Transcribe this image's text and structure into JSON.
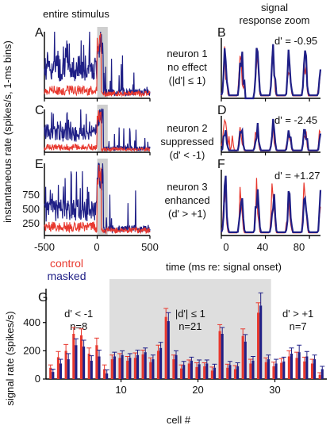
{
  "colors": {
    "control": "#e8382e",
    "masked": "#1f1f86",
    "shade": "#cfcfcf",
    "bshade": "#dedede",
    "axis": "#000000"
  },
  "header": {
    "left": "entire stimulus",
    "right_line1": "signal",
    "right_line2": "response zoom"
  },
  "ylabel_top": "instantaneous rate (spikes/s, 1-ms bins)",
  "xlabel_top": "time (ms re: signal onset)",
  "legend": {
    "control": "control",
    "masked": "masked"
  },
  "rows": [
    {
      "left_letter": "A",
      "right_letter": "B",
      "desc": [
        "neuron 1",
        "no effect",
        "(|d'| ≤ 1)"
      ],
      "dprime": "d' = -0.95"
    },
    {
      "left_letter": "C",
      "right_letter": "D",
      "desc": [
        "neuron 2",
        "suppressed",
        "(d' < -1)"
      ],
      "dprime": "d' = -2.45"
    },
    {
      "left_letter": "E",
      "right_letter": "F",
      "desc": [
        "neuron 3",
        "enhanced",
        "(d' > +1)"
      ],
      "dprime": "d' = +1.27"
    }
  ],
  "chart_data": [
    {
      "type": "line",
      "panel": "left raster-rate plots (A, C, E)",
      "xlabel": "time (ms re: signal onset)",
      "ylabel": "instantaneous rate (spikes/s, 1-ms bins)",
      "xlim": [
        -500,
        500
      ],
      "xticks": [
        "-500",
        "0",
        "500"
      ],
      "yticks": [
        "250",
        "500",
        "750"
      ],
      "shaded_window_ms": [
        0,
        100
      ],
      "series": [
        {
          "name": "control"
        },
        {
          "name": "masked"
        }
      ]
    },
    {
      "type": "line",
      "panel": "right zoom plots (B, D, F)",
      "xlim": [
        0,
        90
      ],
      "xticks": [
        "0",
        "40",
        "80"
      ],
      "series": [
        {
          "name": "control"
        },
        {
          "name": "masked"
        }
      ]
    },
    {
      "type": "bar",
      "letter": "G",
      "ylabel": "signal rate (spikes/s)",
      "xlabel": "cell #",
      "ylim": [
        0,
        640
      ],
      "yticks": [
        "0",
        "200",
        "400"
      ],
      "xticks": [
        "10",
        "20",
        "30"
      ],
      "groups": [
        {
          "label_line1": "d' < -1",
          "label_line2": "n=8",
          "cells": [
            1,
            8
          ]
        },
        {
          "label_line1": "|d'| ≤ 1",
          "label_line2": "n=21",
          "cells": [
            9,
            29
          ]
        },
        {
          "label_line1": "d' > +1",
          "label_line2": "n=7",
          "cells": [
            30,
            36
          ]
        }
      ],
      "cells": [
        1,
        2,
        3,
        4,
        5,
        6,
        7,
        8,
        9,
        10,
        11,
        12,
        13,
        14,
        15,
        16,
        17,
        18,
        19,
        20,
        21,
        22,
        23,
        24,
        25,
        26,
        27,
        28,
        29,
        30,
        31,
        32,
        33,
        34,
        35,
        36
      ],
      "series": [
        {
          "name": "control",
          "values": [
            80,
            155,
            200,
            320,
            310,
            180,
            240,
            70,
            140,
            150,
            130,
            150,
            175,
            120,
            200,
            440,
            140,
            75,
            110,
            85,
            90,
            60,
            340,
            80,
            70,
            305,
            110,
            470,
            120,
            90,
            115,
            160,
            150,
            125,
            110,
            30
          ],
          "errors": [
            20,
            40,
            45,
            45,
            45,
            40,
            50,
            30,
            30,
            30,
            30,
            35,
            30,
            30,
            40,
            60,
            30,
            25,
            25,
            30,
            25,
            25,
            45,
            25,
            25,
            50,
            30,
            70,
            30,
            30,
            30,
            40,
            40,
            30,
            30,
            15
          ]
        },
        {
          "name": "masked",
          "values": [
            50,
            110,
            140,
            240,
            230,
            130,
            160,
            40,
            160,
            170,
            150,
            170,
            190,
            140,
            220,
            410,
            170,
            100,
            130,
            105,
            110,
            80,
            320,
            100,
            90,
            265,
            130,
            520,
            140,
            110,
            125,
            180,
            190,
            160,
            140,
            70
          ],
          "errors": [
            20,
            30,
            40,
            45,
            45,
            35,
            45,
            25,
            30,
            30,
            30,
            35,
            30,
            30,
            40,
            60,
            30,
            25,
            25,
            30,
            25,
            25,
            45,
            25,
            25,
            50,
            30,
            90,
            30,
            30,
            30,
            40,
            50,
            35,
            30,
            20
          ]
        }
      ]
    }
  ]
}
